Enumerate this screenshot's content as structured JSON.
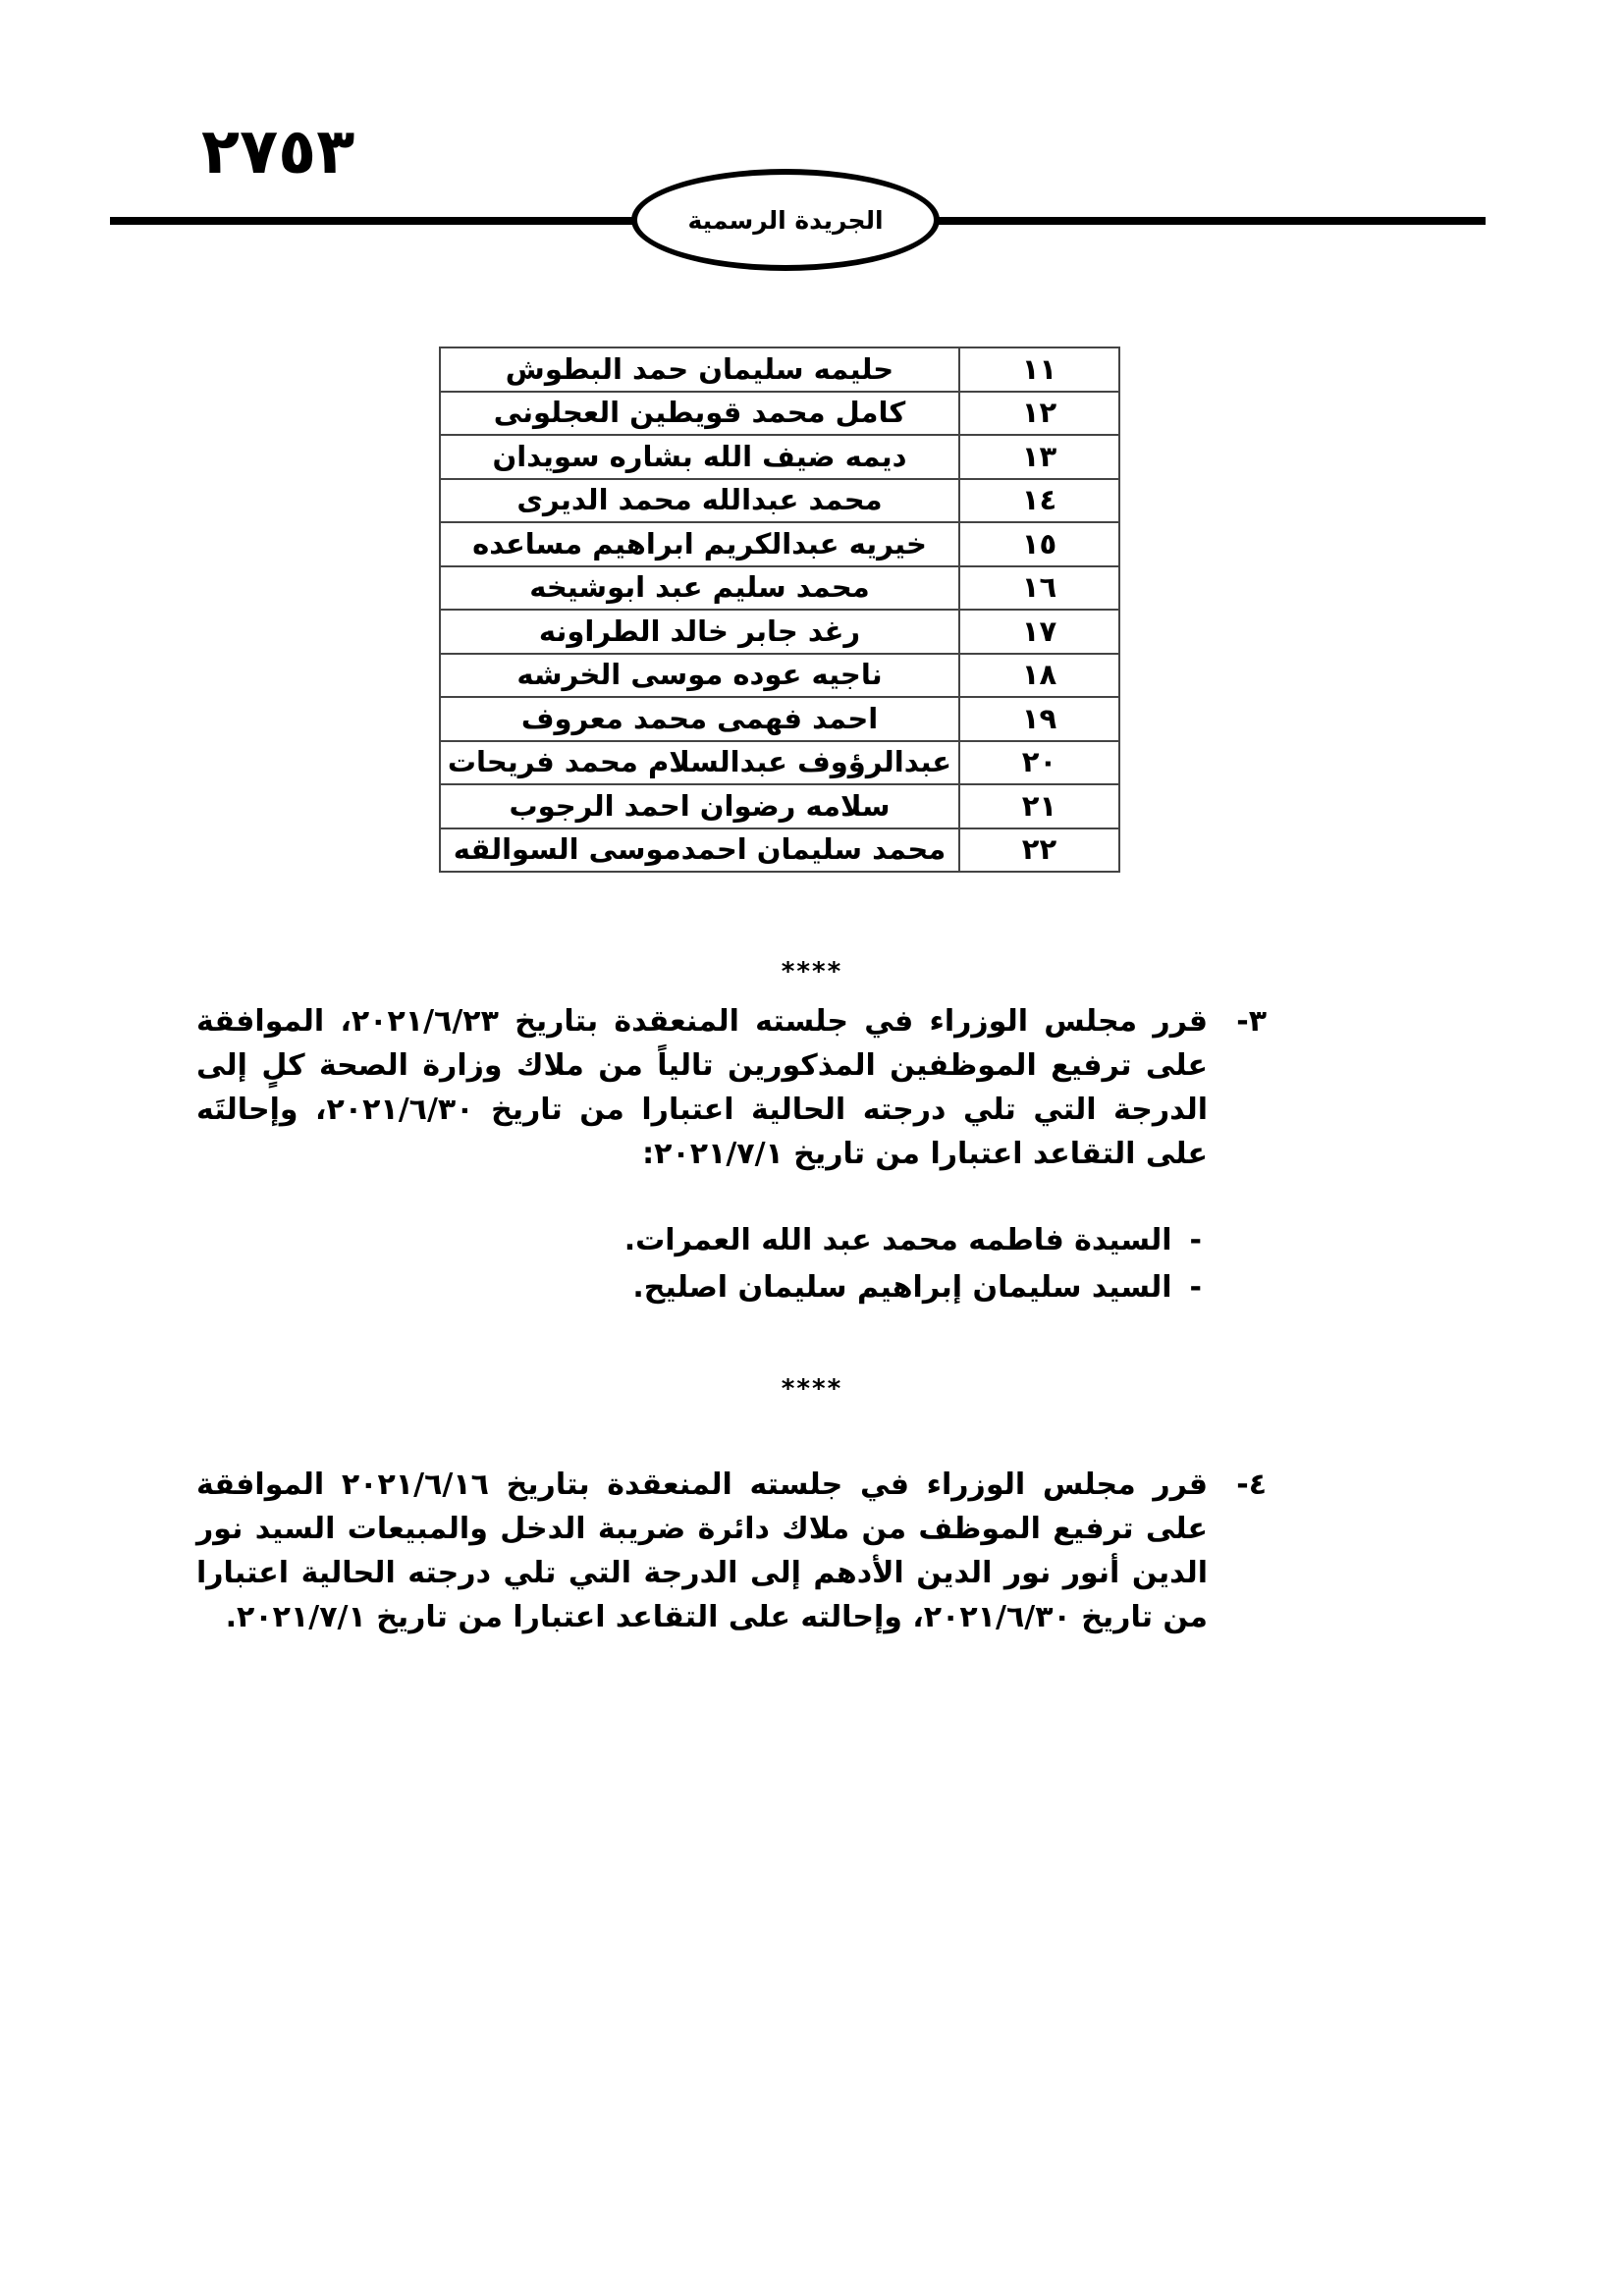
{
  "header": {
    "page_number": "٢٧٥٣",
    "gazette_title": "الجريدة الرسمية"
  },
  "table": {
    "rows": [
      {
        "no": "١١",
        "name": "حليمه سليمان حمد البطوش"
      },
      {
        "no": "١٢",
        "name": "كامل محمد قويطين العجلونى"
      },
      {
        "no": "١٣",
        "name": "ديمه ضيف الله بشاره سويدان"
      },
      {
        "no": "١٤",
        "name": "محمد عبدالله محمد الديرى"
      },
      {
        "no": "١٥",
        "name": "خيريه عبدالكريم ابراهيم مساعده"
      },
      {
        "no": "١٦",
        "name": "محمد سليم عبد ابوشيخه"
      },
      {
        "no": "١٧",
        "name": "رغد جابر خالد الطراونه"
      },
      {
        "no": "١٨",
        "name": "ناجيه عوده موسى الخرشه"
      },
      {
        "no": "١٩",
        "name": "احمد فهمى محمد معروف"
      },
      {
        "no": "٢٠",
        "name": "عبدالرؤوف عبدالسلام محمد فريحات"
      },
      {
        "no": "٢١",
        "name": "سلامه رضوان احمد الرجوب"
      },
      {
        "no": "٢٢",
        "name": "محمد سليمان احمدموسى السوالقه"
      }
    ]
  },
  "separator": "****",
  "decision3": {
    "number": "٣-",
    "text": "قرر مجلس الوزراء في جلسته المنعقدة بتاريخ ٢٠٢١/٦/٢٣، الموافقة على ترفيع الموظفين المذكورين تالياً من ملاك وزارة الصحة كلٍ إلى الدرجة التي تلي درجته الحالية اعتبارا من تاريخ ٢٠٢١/٦/٣٠، وإحالتَه على التقاعد اعتبارا من تاريخ ٢٠٢١/٧/١:",
    "items": [
      "السيدة فاطمه محمد عبد الله العمرات.",
      "السيد سليمان إبراهيم سليمان اصليح."
    ],
    "bullet": "-"
  },
  "decision4": {
    "number": "٤-",
    "text": "قرر مجلس الوزراء في جلسته المنعقدة بتاريخ ٢٠٢١/٦/١٦ الموافقة على ترفيع الموظف من ملاك دائرة ضريبة الدخل والمبيعات السيد نور الدين أنور نور الدين الأدهم إلى الدرجة التي تلي درجته الحالية اعتبارا من تاريخ ٢٠٢١/٦/٣٠، وإحالته على التقاعد اعتبارا من تاريخ ٢٠٢١/٧/١."
  }
}
